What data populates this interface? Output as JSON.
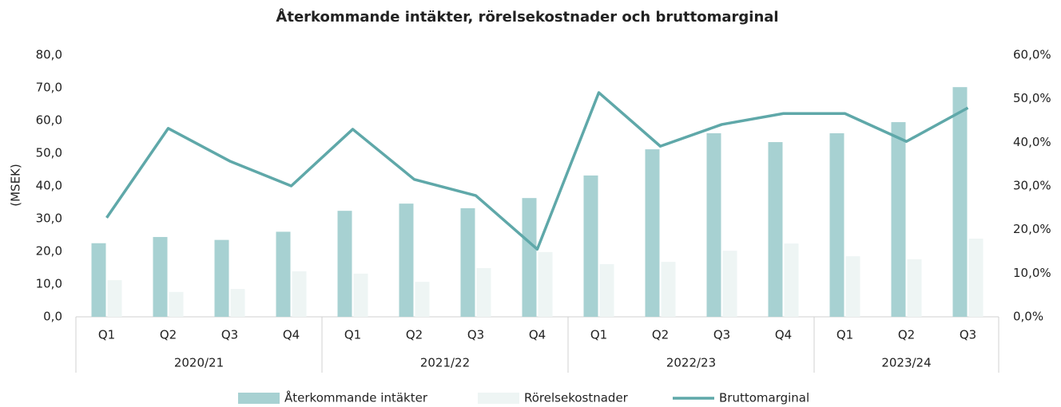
{
  "chart_data": {
    "type": "bar-line",
    "title": "Återkommande intäkter, rörelsekostnader och bruttomarginal",
    "y_label": "(MSEK)",
    "groups": [
      {
        "name": "2020/21",
        "categories": [
          "Q1",
          "Q2",
          "Q3",
          "Q4"
        ]
      },
      {
        "name": "2021/22",
        "categories": [
          "Q1",
          "Q2",
          "Q3",
          "Q4"
        ]
      },
      {
        "name": "2022/23",
        "categories": [
          "Q1",
          "Q2",
          "Q3",
          "Q4"
        ]
      },
      {
        "name": "2023/24",
        "categories": [
          "Q1",
          "Q2",
          "Q3"
        ]
      }
    ],
    "series": [
      {
        "name": "Återkommande intäkter",
        "type": "bar",
        "color": "#a7d1d2",
        "values": [
          22.5,
          24.4,
          23.5,
          26.0,
          32.4,
          34.6,
          33.2,
          36.3,
          43.2,
          51.2,
          56.1,
          53.4,
          56.1,
          59.5,
          70.2
        ]
      },
      {
        "name": "Rörelsekostnader",
        "type": "bar",
        "color": "#eef5f4",
        "values": [
          11.2,
          7.6,
          8.5,
          13.9,
          13.2,
          10.7,
          14.9,
          19.8,
          16.1,
          16.8,
          20.2,
          22.4,
          18.5,
          17.6,
          23.9
        ]
      },
      {
        "name": "Bruttomarginal",
        "type": "line",
        "color": "#5fa8a9",
        "axis": "y2",
        "values": [
          22.7,
          43.2,
          35.7,
          30.0,
          43.0,
          31.5,
          27.8,
          15.5,
          51.4,
          39.1,
          44.1,
          46.6,
          46.6,
          40.2,
          47.9
        ]
      }
    ],
    "ylim": [
      0,
      80
    ],
    "yticks": [
      {
        "value": 0,
        "label": "0,0"
      },
      {
        "value": 10,
        "label": "10,0"
      },
      {
        "value": 20,
        "label": "20,0"
      },
      {
        "value": 30,
        "label": "30,0"
      },
      {
        "value": 40,
        "label": "40,0"
      },
      {
        "value": 50,
        "label": "50,0"
      },
      {
        "value": 60,
        "label": "60,0"
      },
      {
        "value": 70,
        "label": "70,0"
      },
      {
        "value": 80,
        "label": "80,0"
      }
    ],
    "y2lim": [
      0,
      60
    ],
    "y2ticks": [
      {
        "value": 0,
        "label": "0,0%"
      },
      {
        "value": 10,
        "label": "10,0%"
      },
      {
        "value": 20,
        "label": "20,0%"
      },
      {
        "value": 30,
        "label": "30,0%"
      },
      {
        "value": 40,
        "label": "40,0%"
      },
      {
        "value": 50,
        "label": "50,0%"
      },
      {
        "value": 60,
        "label": "60,0%"
      }
    ],
    "legend": "bottom"
  }
}
